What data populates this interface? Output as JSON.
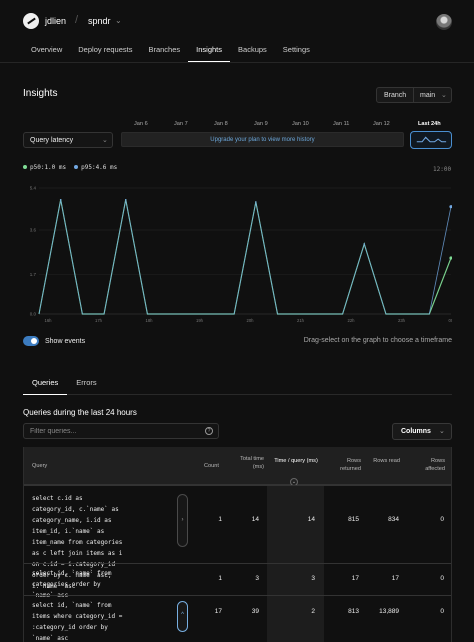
{
  "header": {
    "username": "jdlien",
    "separator": "/",
    "database": "spndr",
    "nav": [
      "Overview",
      "Deploy requests",
      "Branches",
      "Insights",
      "Backups",
      "Settings"
    ]
  },
  "insights": {
    "title": "Insights",
    "branch_label": "Branch",
    "branch_value": "main",
    "metric_select": "Query latency",
    "day_labels": [
      "Jan 6",
      "Jan 7",
      "Jan 8",
      "Jan 9",
      "Jan 10",
      "Jan 11",
      "Jan 12",
      "Last 24h"
    ],
    "upgrade_text": "Upgrade your plan to view more history",
    "legend": {
      "p50": "p50:1.0 ms",
      "p95": "p95:4.6 ms"
    },
    "time_right": "12:00",
    "show_events": "Show events",
    "drag_hint": "Drag-select on the graph to choose a timeframe"
  },
  "queries": {
    "tabs": [
      "Queries",
      "Errors"
    ],
    "section_title": "Queries during the last 24 hours",
    "filter_placeholder": "Filter queries...",
    "help_icon": "?",
    "columns_button": "Columns",
    "headers": {
      "query": "Query",
      "count": "Count",
      "total_time": "Total time (ms)",
      "time_query": "Time / query (ms)",
      "rows_returned": "Rows returned",
      "rows_read": "Rows read",
      "rows_affected": "Rows affected"
    },
    "rows": [
      {
        "sql": "select c.id as category_id, c.`name` as category_name, i.id as item_id, i.`name` as item_name from categories as c left join items as i on c.id = i.category_id order by c.`name` asc, i.`name` asc",
        "count": "1",
        "total": "14",
        "time": "14",
        "returned": "815",
        "read": "834",
        "affected": "0"
      },
      {
        "sql": "select id, `name` from categories order by `name` asc",
        "count": "1",
        "total": "3",
        "time": "3",
        "returned": "17",
        "read": "17",
        "affected": "0"
      },
      {
        "sql": "select id, `name` from items where category_id = :category_id order by `name` asc",
        "count": "17",
        "total": "39",
        "time": "2",
        "returned": "813",
        "read": "13,889",
        "affected": "0"
      }
    ]
  },
  "chart_data": {
    "type": "line",
    "title": "",
    "xlabel": "",
    "ylabel": "",
    "y_ticks": [
      "5.4",
      "3.6",
      "1.7",
      "0.0"
    ],
    "x_ticks": [
      "16h",
      "17h",
      "18h",
      "19h",
      "20h",
      "21h",
      "22h",
      "23h",
      "00h",
      "01h"
    ],
    "ylim": [
      0,
      5.4
    ],
    "x": [
      "16:00",
      "16:30",
      "17:00",
      "17:30",
      "18:00",
      "18:30",
      "19:00",
      "19:30",
      "20:00",
      "20:30",
      "21:00",
      "21:30",
      "22:00",
      "22:30",
      "23:00",
      "23:30",
      "00:00",
      "00:30",
      "01:00",
      "01:30"
    ],
    "series": [
      {
        "name": "p50",
        "color": "#7fdc95",
        "values": [
          0.0,
          4.9,
          0.0,
          0.0,
          4.9,
          0.0,
          0.0,
          0.0,
          0.0,
          0.0,
          4.8,
          0.0,
          0.0,
          0.0,
          0.0,
          3.0,
          0.0,
          0.0,
          0.0,
          2.4
        ]
      },
      {
        "name": "p95",
        "color": "#72a8e2",
        "values": [
          0.0,
          4.9,
          0.0,
          0.0,
          4.9,
          0.0,
          0.0,
          0.0,
          0.0,
          0.0,
          4.8,
          0.0,
          0.0,
          0.0,
          0.0,
          3.0,
          0.0,
          0.0,
          0.0,
          4.6
        ]
      }
    ]
  }
}
